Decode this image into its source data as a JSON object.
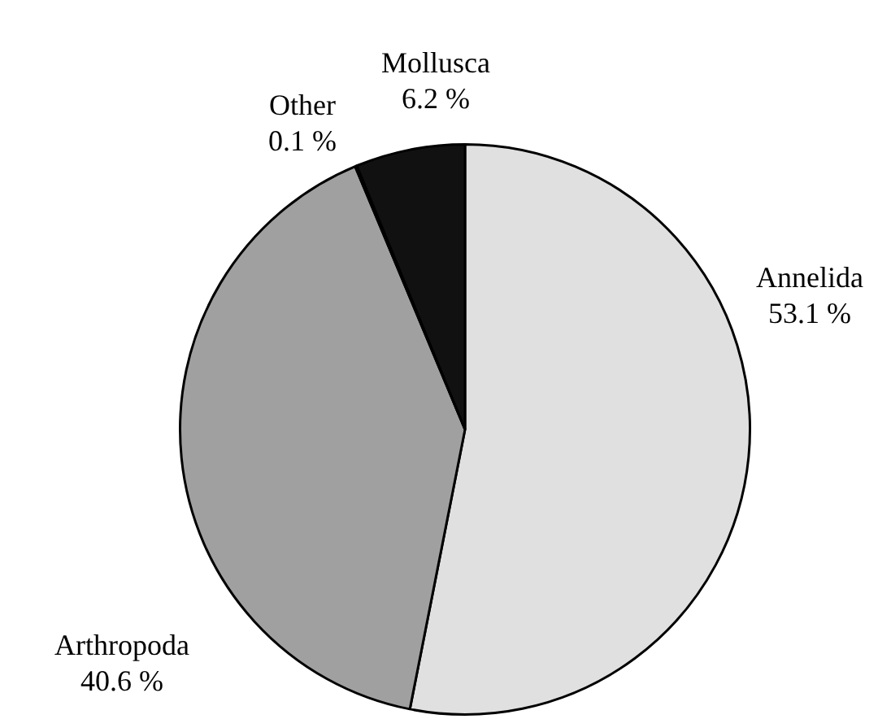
{
  "chart_data": {
    "type": "pie",
    "categories": [
      "Annelida",
      "Arthropoda",
      "Other",
      "Mollusca"
    ],
    "values": [
      53.1,
      40.6,
      0.1,
      6.2
    ],
    "colors": [
      "#e0e0e0",
      "#a0a0a0",
      "#555555",
      "#111111"
    ],
    "value_labels": [
      "53.1 %",
      "40.6 %",
      "0.1 %",
      "6.2 %"
    ],
    "legend": false
  }
}
